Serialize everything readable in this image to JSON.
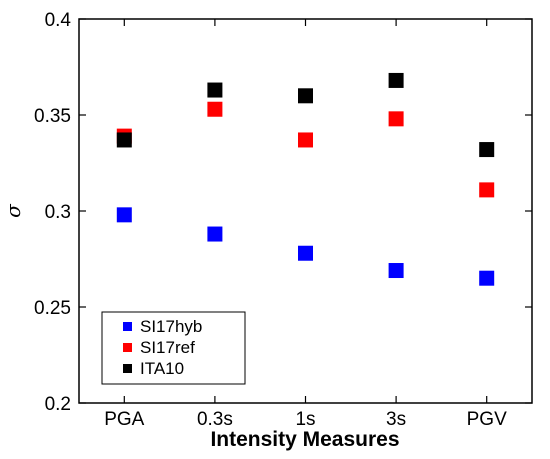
{
  "chart_data": {
    "type": "scatter",
    "title": "",
    "xlabel": "Intensity Measures",
    "ylabel": "σ",
    "categories": [
      "PGA",
      "0.3s",
      "1s",
      "3s",
      "PGV"
    ],
    "y_ticks": [
      "0.2",
      "0.25",
      "0.3",
      "0.35",
      "0.4"
    ],
    "ylim": [
      0.2,
      0.4
    ],
    "grid": false,
    "legend_position": "bottom-left",
    "series": [
      {
        "name": "SI17hyb",
        "color": "#0000ff",
        "values": [
          0.298,
          0.288,
          0.278,
          0.269,
          0.265
        ]
      },
      {
        "name": "SI17ref",
        "color": "#ff0000",
        "values": [
          0.339,
          0.353,
          0.337,
          0.348,
          0.311
        ]
      },
      {
        "name": "ITA10",
        "color": "#000000",
        "values": [
          0.337,
          0.363,
          0.36,
          0.368,
          0.332
        ]
      }
    ]
  }
}
